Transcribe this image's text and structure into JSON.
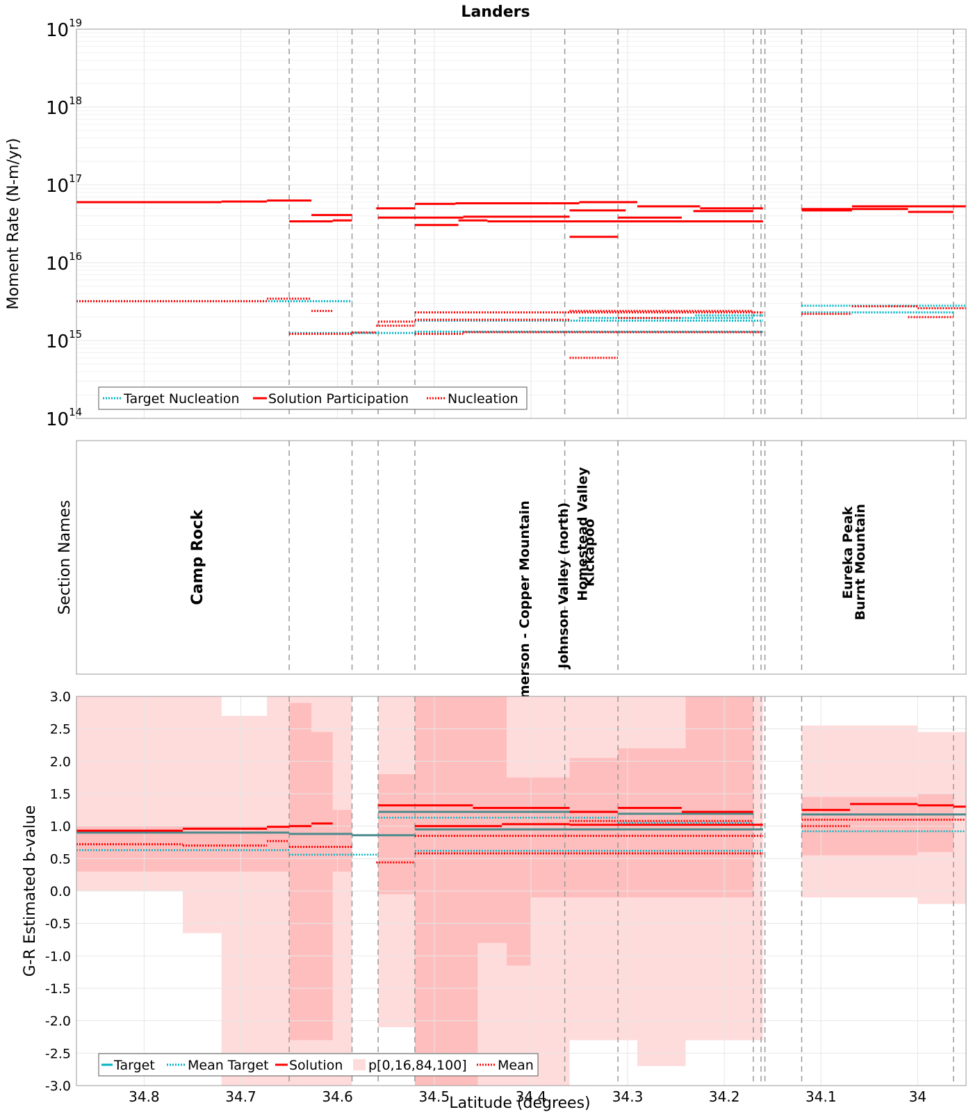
{
  "figure": {
    "title": "Landers",
    "xlabel": "Latitude (degrees)"
  },
  "colors": {
    "red": "#ff0000",
    "cyan": "#00b4c4",
    "teal": "#4a8a8c",
    "band_outer": "#ffdcdc",
    "band_inner": "#ff9a9a",
    "grid": "#e6e6e6",
    "section_line": "#999999"
  },
  "chart_data": [
    {
      "id": "moment_rate",
      "type": "line",
      "title": "Landers",
      "ylabel": "Moment Rate (N-m/yr)",
      "yscale": "log",
      "ylim": [
        100000000000000.0,
        1e+19
      ],
      "xlim": [
        34.87,
        33.95
      ],
      "x_reversed": true,
      "ytick_labels": [
        "10^14",
        "10^15",
        "10^16",
        "10^17",
        "10^18",
        "10^19"
      ],
      "legend": [
        "Target Nucleation",
        "Solution Participation",
        "Nucleation"
      ],
      "legend_position": "lower-left",
      "section_boundaries": [
        34.65,
        34.585,
        34.558,
        34.52,
        34.365,
        34.31,
        34.17,
        34.162,
        34.158,
        34.12,
        33.963
      ],
      "series": [
        {
          "name": "Solution Participation",
          "style": "solid-red",
          "segments": [
            {
              "x0": 34.87,
              "x1": 34.72,
              "y": 6e+16
            },
            {
              "x0": 34.72,
              "x1": 34.673,
              "y": 6.1e+16
            },
            {
              "x0": 34.673,
              "x1": 34.65,
              "y": 6.3e+16
            },
            {
              "x0": 34.65,
              "x1": 34.627,
              "y": 6.3e+16
            },
            {
              "x0": 34.65,
              "x1": 34.605,
              "y": 3.4e+16
            },
            {
              "x0": 34.605,
              "x1": 34.585,
              "y": 3.5e+16
            },
            {
              "x0": 34.627,
              "x1": 34.585,
              "y": 4.1e+16
            },
            {
              "x0": 34.56,
              "x1": 34.532,
              "y": 5e+16
            },
            {
              "x0": 34.532,
              "x1": 34.52,
              "y": 5e+16
            },
            {
              "x0": 34.558,
              "x1": 34.52,
              "y": 3.8e+16
            },
            {
              "x0": 34.52,
              "x1": 34.478,
              "y": 5.7e+16
            },
            {
              "x0": 34.478,
              "x1": 34.38,
              "y": 5.8e+16
            },
            {
              "x0": 34.38,
              "x1": 34.35,
              "y": 5.8e+16
            },
            {
              "x0": 34.35,
              "x1": 34.29,
              "y": 6e+16
            },
            {
              "x0": 34.52,
              "x1": 34.47,
              "y": 3.8e+16
            },
            {
              "x0": 34.47,
              "x1": 34.36,
              "y": 3.9e+16
            },
            {
              "x0": 34.52,
              "x1": 34.475,
              "y": 3.05e+16
            },
            {
              "x0": 34.475,
              "x1": 34.445,
              "y": 3.5e+16
            },
            {
              "x0": 34.445,
              "x1": 34.3,
              "y": 3.4e+16
            },
            {
              "x0": 34.3,
              "x1": 34.16,
              "y": 3.4e+16
            },
            {
              "x0": 34.36,
              "x1": 34.31,
              "y": 2.15e+16
            },
            {
              "x0": 34.36,
              "x1": 34.302,
              "y": 4.7e+16
            },
            {
              "x0": 34.31,
              "x1": 34.244,
              "y": 3.8e+16
            },
            {
              "x0": 34.29,
              "x1": 34.225,
              "y": 5.3e+16
            },
            {
              "x0": 34.225,
              "x1": 34.16,
              "y": 5e+16
            },
            {
              "x0": 34.232,
              "x1": 34.17,
              "y": 4.6e+16
            },
            {
              "x0": 34.12,
              "x1": 34.068,
              "y": 4.9e+16
            },
            {
              "x0": 34.068,
              "x1": 34.0,
              "y": 5.3e+16
            },
            {
              "x0": 34.0,
              "x1": 33.95,
              "y": 5.3e+16
            },
            {
              "x0": 34.12,
              "x1": 34.068,
              "y": 4.7e+16
            },
            {
              "x0": 34.068,
              "x1": 34.01,
              "y": 4.9e+16
            },
            {
              "x0": 34.01,
              "x1": 33.963,
              "y": 4.5e+16
            }
          ]
        },
        {
          "name": "Target Nucleation",
          "style": "dotted-cyan",
          "segments": [
            {
              "x0": 34.87,
              "x1": 34.585,
              "y": 3200000000000000.0
            },
            {
              "x0": 34.65,
              "x1": 34.558,
              "y": 1250000000000000.0
            },
            {
              "x0": 34.558,
              "x1": 34.52,
              "y": 1250000000000000.0
            },
            {
              "x0": 34.52,
              "x1": 34.16,
              "y": 1300000000000000.0
            },
            {
              "x0": 34.52,
              "x1": 34.16,
              "y": 1800000000000000.0
            },
            {
              "x0": 34.35,
              "x1": 34.17,
              "y": 1950000000000000.0
            },
            {
              "x0": 34.23,
              "x1": 34.16,
              "y": 2100000000000000.0
            },
            {
              "x0": 34.12,
              "x1": 34.03,
              "y": 2800000000000000.0
            },
            {
              "x0": 34.03,
              "x1": 33.95,
              "y": 2800000000000000.0
            },
            {
              "x0": 34.12,
              "x1": 33.963,
              "y": 2300000000000000.0
            }
          ]
        },
        {
          "name": "Nucleation",
          "style": "dotted-red",
          "segments": [
            {
              "x0": 34.87,
              "x1": 34.673,
              "y": 3200000000000000.0
            },
            {
              "x0": 34.673,
              "x1": 34.627,
              "y": 3450000000000000.0
            },
            {
              "x0": 34.627,
              "x1": 34.605,
              "y": 2400000000000000.0
            },
            {
              "x0": 34.65,
              "x1": 34.585,
              "y": 1220000000000000.0
            },
            {
              "x0": 34.585,
              "x1": 34.56,
              "y": 1270000000000000.0
            },
            {
              "x0": 34.56,
              "x1": 34.52,
              "y": 1550000000000000.0
            },
            {
              "x0": 34.558,
              "x1": 34.52,
              "y": 1750000000000000.0
            },
            {
              "x0": 34.52,
              "x1": 34.47,
              "y": 1220000000000000.0
            },
            {
              "x0": 34.47,
              "x1": 34.16,
              "y": 1280000000000000.0
            },
            {
              "x0": 34.52,
              "x1": 34.16,
              "y": 2300000000000000.0
            },
            {
              "x0": 34.52,
              "x1": 34.36,
              "y": 1850000000000000.0
            },
            {
              "x0": 34.36,
              "x1": 34.31,
              "y": 600000000000000.0
            },
            {
              "x0": 34.36,
              "x1": 34.17,
              "y": 2400000000000000.0
            },
            {
              "x0": 34.31,
              "x1": 34.244,
              "y": 1950000000000000.0
            },
            {
              "x0": 34.12,
              "x1": 34.068,
              "y": 2200000000000000.0
            },
            {
              "x0": 34.068,
              "x1": 34.0,
              "y": 2750000000000000.0
            },
            {
              "x0": 34.01,
              "x1": 33.963,
              "y": 2000000000000000.0
            },
            {
              "x0": 34.0,
              "x1": 33.95,
              "y": 2600000000000000.0
            }
          ]
        }
      ]
    },
    {
      "id": "section_names",
      "type": "table",
      "ylabel": "Section Names",
      "xlim": [
        34.87,
        33.95
      ],
      "section_boundaries": [
        34.65,
        34.585,
        34.558,
        34.52,
        34.365,
        34.31,
        34.17,
        34.162,
        34.158,
        34.12,
        33.963
      ],
      "labels": [
        {
          "text": "Camp Rock",
          "x": 34.74,
          "y_center": 0.5
        },
        {
          "text": "Emerson - Copper Mountain",
          "x": 34.402,
          "y_center": 0.3
        },
        {
          "text": "Johnson Valley (north)",
          "x": 34.362,
          "y_center": 0.38
        },
        {
          "text": "Homestead Valley",
          "x": 34.342,
          "y_center": 0.6
        },
        {
          "text": "Kickapoo",
          "x": 34.335,
          "y_center": 0.52
        },
        {
          "text": "Eureka Peak",
          "x": 34.068,
          "y_center": 0.52
        },
        {
          "text": "Burnt Mountain",
          "x": 34.055,
          "y_center": 0.48
        }
      ]
    },
    {
      "id": "b_value",
      "type": "line",
      "ylabel": "G-R Estimated b-value",
      "xlabel": "Latitude (degrees)",
      "ylim": [
        -3.0,
        3.0
      ],
      "yticks": [
        "-3.0",
        "-2.5",
        "-2.0",
        "-1.5",
        "-1.0",
        "-0.5",
        "0.0",
        "0.5",
        "1.0",
        "1.5",
        "2.0",
        "2.5",
        "3.0"
      ],
      "xticks": [
        "34.8",
        "34.7",
        "34.6",
        "34.5",
        "34.4",
        "34.3",
        "34.2",
        "34.1",
        "34"
      ],
      "xtick_values": [
        34.8,
        34.7,
        34.6,
        34.5,
        34.4,
        34.3,
        34.2,
        34.1,
        34.0
      ],
      "xlim": [
        34.87,
        33.95
      ],
      "legend": [
        "Target",
        "Mean Target",
        "Solution",
        "p[0,16,84,100]",
        "Mean"
      ],
      "legend_position": "lower-left",
      "section_boundaries": [
        34.65,
        34.585,
        34.558,
        34.52,
        34.365,
        34.31,
        34.17,
        34.162,
        34.158,
        34.12,
        33.963
      ],
      "bands_outer": [
        {
          "x0": 34.87,
          "x1": 34.72,
          "lo": 0.0,
          "hi": 3.0
        },
        {
          "x0": 34.76,
          "x1": 34.72,
          "lo": -0.65,
          "hi": 3.0
        },
        {
          "x0": 34.72,
          "x1": 34.65,
          "lo": -3.0,
          "hi": 2.7
        },
        {
          "x0": 34.673,
          "x1": 34.65,
          "lo": -3.0,
          "hi": 3.0
        },
        {
          "x0": 34.65,
          "x1": 34.585,
          "lo": -3.0,
          "hi": 3.0
        },
        {
          "x0": 34.558,
          "x1": 34.52,
          "lo": -2.1,
          "hi": 3.0
        },
        {
          "x0": 34.52,
          "x1": 34.36,
          "lo": -3.0,
          "hi": 3.0
        },
        {
          "x0": 34.36,
          "x1": 34.16,
          "lo": -2.3,
          "hi": 3.0
        },
        {
          "x0": 34.29,
          "x1": 34.24,
          "lo": -2.7,
          "hi": 2.75
        },
        {
          "x0": 34.12,
          "x1": 34.0,
          "lo": -0.1,
          "hi": 2.55
        },
        {
          "x0": 34.0,
          "x1": 33.95,
          "lo": -0.2,
          "hi": 2.45
        }
      ],
      "bands_inner": [
        {
          "x0": 34.87,
          "x1": 34.65,
          "lo": 0.3,
          "hi": 1.0
        },
        {
          "x0": 34.65,
          "x1": 34.627,
          "lo": -2.3,
          "hi": 2.9
        },
        {
          "x0": 34.627,
          "x1": 34.605,
          "lo": -2.3,
          "hi": 2.45
        },
        {
          "x0": 34.605,
          "x1": 34.585,
          "lo": 0.3,
          "hi": 1.25
        },
        {
          "x0": 34.558,
          "x1": 34.52,
          "lo": -0.05,
          "hi": 1.8
        },
        {
          "x0": 34.52,
          "x1": 34.455,
          "lo": -3.0,
          "hi": 3.0
        },
        {
          "x0": 34.455,
          "x1": 34.425,
          "lo": -0.8,
          "hi": 3.0
        },
        {
          "x0": 34.425,
          "x1": 34.4,
          "lo": -1.15,
          "hi": 1.75
        },
        {
          "x0": 34.4,
          "x1": 34.36,
          "lo": -0.1,
          "hi": 1.75
        },
        {
          "x0": 34.36,
          "x1": 34.31,
          "lo": -0.1,
          "hi": 2.05
        },
        {
          "x0": 34.31,
          "x1": 34.24,
          "lo": -0.1,
          "hi": 2.2
        },
        {
          "x0": 34.24,
          "x1": 34.17,
          "lo": -0.1,
          "hi": 3.0
        },
        {
          "x0": 34.12,
          "x1": 34.0,
          "lo": 0.55,
          "hi": 1.45
        },
        {
          "x0": 34.0,
          "x1": 33.963,
          "lo": 0.6,
          "hi": 1.5
        }
      ],
      "series": [
        {
          "name": "Solution",
          "style": "solid-red",
          "segments": [
            {
              "x0": 34.87,
              "x1": 34.76,
              "y": 0.93
            },
            {
              "x0": 34.76,
              "x1": 34.673,
              "y": 0.96
            },
            {
              "x0": 34.673,
              "x1": 34.65,
              "y": 0.99
            },
            {
              "x0": 34.65,
              "x1": 34.627,
              "y": 1.0
            },
            {
              "x0": 34.627,
              "x1": 34.605,
              "y": 1.04
            },
            {
              "x0": 34.558,
              "x1": 34.46,
              "y": 1.32
            },
            {
              "x0": 34.46,
              "x1": 34.36,
              "y": 1.28
            },
            {
              "x0": 34.36,
              "x1": 34.31,
              "y": 1.22
            },
            {
              "x0": 34.31,
              "x1": 34.244,
              "y": 1.28
            },
            {
              "x0": 34.244,
              "x1": 34.17,
              "y": 1.22
            },
            {
              "x0": 34.52,
              "x1": 34.43,
              "y": 1.0
            },
            {
              "x0": 34.43,
              "x1": 34.36,
              "y": 1.03
            },
            {
              "x0": 34.36,
              "x1": 34.16,
              "y": 1.02
            },
            {
              "x0": 34.12,
              "x1": 34.07,
              "y": 1.25
            },
            {
              "x0": 34.07,
              "x1": 34.0,
              "y": 1.34
            },
            {
              "x0": 34.0,
              "x1": 33.963,
              "y": 1.32
            },
            {
              "x0": 33.963,
              "x1": 33.95,
              "y": 1.3
            }
          ]
        },
        {
          "name": "Target",
          "style": "solid-teal",
          "segments": [
            {
              "x0": 34.87,
              "x1": 34.65,
              "y": 0.9
            },
            {
              "x0": 34.65,
              "x1": 34.585,
              "y": 0.88
            },
            {
              "x0": 34.585,
              "x1": 34.52,
              "y": 0.86
            },
            {
              "x0": 34.52,
              "x1": 34.16,
              "y": 0.95
            },
            {
              "x0": 34.558,
              "x1": 34.31,
              "y": 1.22
            },
            {
              "x0": 34.31,
              "x1": 34.17,
              "y": 1.19
            },
            {
              "x0": 34.12,
              "x1": 33.95,
              "y": 1.18
            }
          ]
        },
        {
          "name": "Mean Target",
          "style": "dotted-teal",
          "segments": [
            {
              "x0": 34.87,
              "x1": 34.65,
              "y": 0.63
            },
            {
              "x0": 34.65,
              "x1": 34.558,
              "y": 0.56
            },
            {
              "x0": 34.52,
              "x1": 34.16,
              "y": 0.62
            },
            {
              "x0": 34.558,
              "x1": 34.31,
              "y": 1.13
            },
            {
              "x0": 34.31,
              "x1": 34.17,
              "y": 1.05
            },
            {
              "x0": 34.12,
              "x1": 33.95,
              "y": 0.92
            }
          ]
        },
        {
          "name": "Mean",
          "style": "dotted-red",
          "segments": [
            {
              "x0": 34.87,
              "x1": 34.76,
              "y": 0.72
            },
            {
              "x0": 34.76,
              "x1": 34.673,
              "y": 0.7
            },
            {
              "x0": 34.673,
              "x1": 34.65,
              "y": 0.77
            },
            {
              "x0": 34.65,
              "x1": 34.585,
              "y": 0.68
            },
            {
              "x0": 34.56,
              "x1": 34.52,
              "y": 0.44
            },
            {
              "x0": 34.52,
              "x1": 34.16,
              "y": 0.85
            },
            {
              "x0": 34.52,
              "x1": 34.16,
              "y": 0.58
            },
            {
              "x0": 34.36,
              "x1": 34.17,
              "y": 1.08
            },
            {
              "x0": 34.12,
              "x1": 33.95,
              "y": 1.1
            },
            {
              "x0": 34.12,
              "x1": 34.07,
              "y": 1.0
            }
          ]
        }
      ]
    }
  ]
}
